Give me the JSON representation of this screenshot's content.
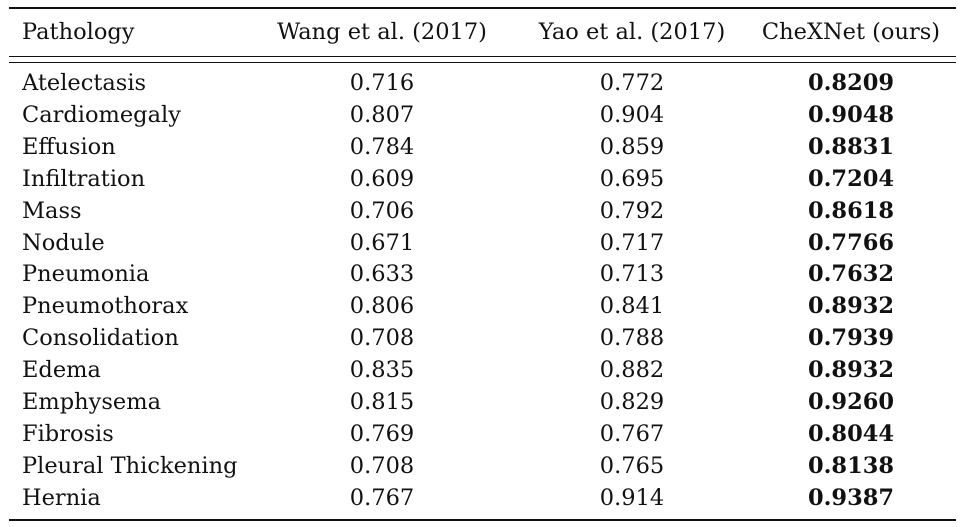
{
  "table": {
    "headers": [
      "Pathology",
      "Wang et al. (2017)",
      "Yao et al. (2017)",
      "CheXNet (ours)"
    ],
    "rows": [
      [
        "Atelectasis",
        "0.716",
        "0.772",
        "0.8209"
      ],
      [
        "Cardiomegaly",
        "0.807",
        "0.904",
        "0.9048"
      ],
      [
        "Effusion",
        "0.784",
        "0.859",
        "0.8831"
      ],
      [
        "Infiltration",
        "0.609",
        "0.695",
        "0.7204"
      ],
      [
        "Mass",
        "0.706",
        "0.792",
        "0.8618"
      ],
      [
        "Nodule",
        "0.671",
        "0.717",
        "0.7766"
      ],
      [
        "Pneumonia",
        "0.633",
        "0.713",
        "0.7632"
      ],
      [
        "Pneumothorax",
        "0.806",
        "0.841",
        "0.8932"
      ],
      [
        "Consolidation",
        "0.708",
        "0.788",
        "0.7939"
      ],
      [
        "Edema",
        "0.835",
        "0.882",
        "0.8932"
      ],
      [
        "Emphysema",
        "0.815",
        "0.829",
        "0.9260"
      ],
      [
        "Fibrosis",
        "0.769",
        "0.767",
        "0.8044"
      ],
      [
        "Pleural Thickening",
        "0.708",
        "0.765",
        "0.8138"
      ],
      [
        "Hernia",
        "0.767",
        "0.914",
        "0.9387"
      ]
    ]
  }
}
